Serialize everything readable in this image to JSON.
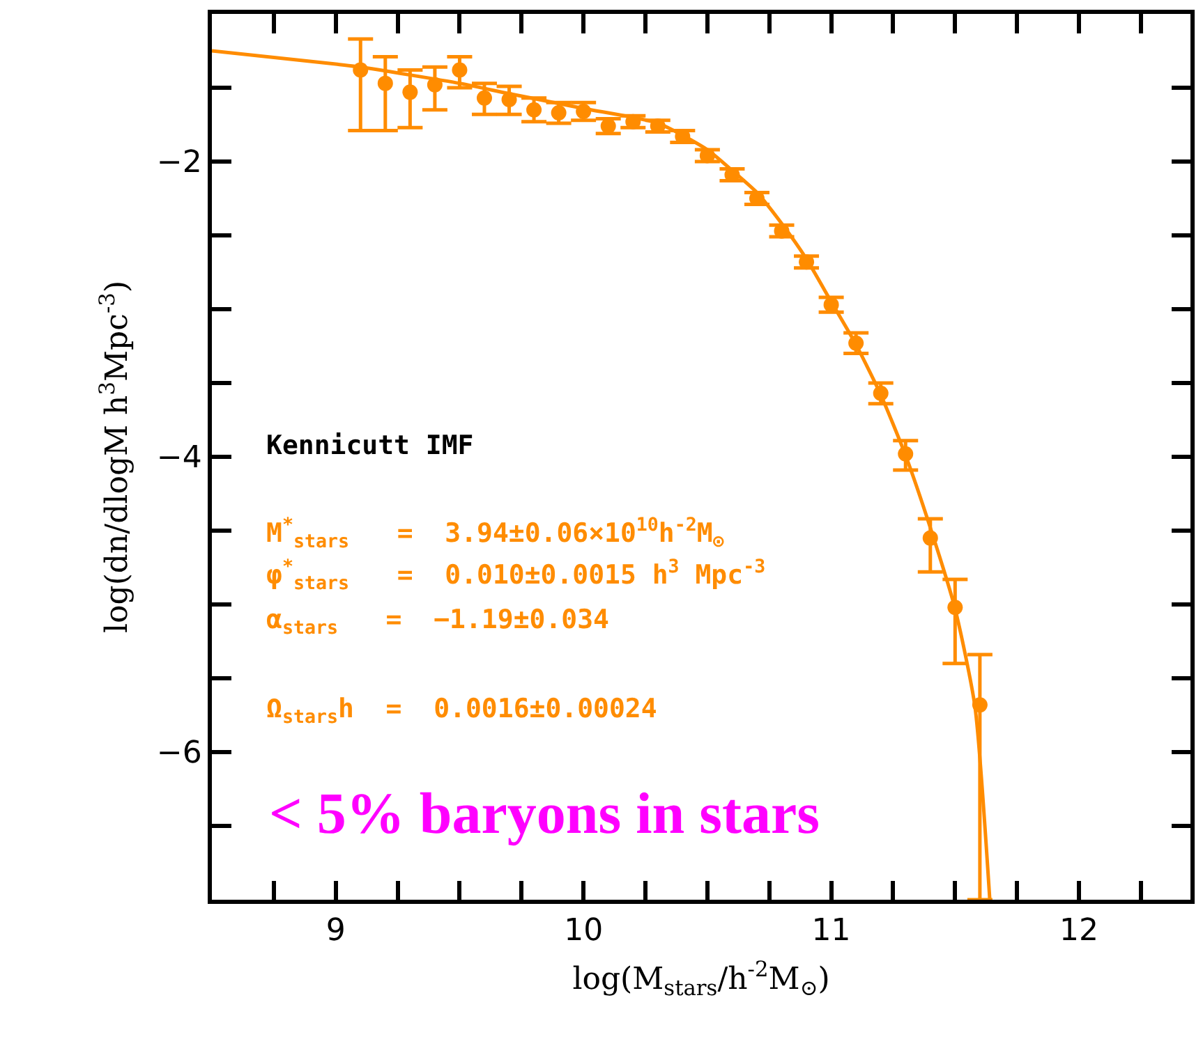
{
  "chart_data": {
    "type": "scatter",
    "xlabel": "log(M$_{stars}$/h$^{-2}$M$_{⊙}$)",
    "ylabel": "log(dn/dlogM h$^{3}$Mpc$^{-3}$)",
    "xlim": [
      8.5,
      12.45
    ],
    "ylim": [
      -7,
      -1
    ],
    "xticks": [
      {
        "value": 8.75,
        "label": null
      },
      9,
      {
        "value": 9.25,
        "label": null
      },
      {
        "value": 9.5,
        "label": null
      },
      {
        "value": 9.75,
        "label": null
      },
      10,
      {
        "value": 10.25,
        "label": null
      },
      {
        "value": 10.5,
        "label": null
      },
      {
        "value": 10.75,
        "label": null
      },
      11,
      {
        "value": 11.25,
        "label": null
      },
      {
        "value": 11.5,
        "label": null
      },
      {
        "value": 11.75,
        "label": null
      },
      12,
      {
        "value": 12.25,
        "label": null
      }
    ],
    "yticks": [
      {
        "value": -1.5,
        "label": null
      },
      -2,
      {
        "value": -2.5,
        "label": null
      },
      {
        "value": -3,
        "label": null
      },
      {
        "value": -3.5,
        "label": null
      },
      -4,
      {
        "value": -4.5,
        "label": null
      },
      {
        "value": -5,
        "label": null
      },
      {
        "value": -5.5,
        "label": null
      },
      -6,
      {
        "value": -6.5,
        "label": null
      }
    ],
    "series": [
      {
        "color": "#ff8c00",
        "marker": "circle",
        "x": [
          9.1,
          9.2,
          9.3,
          9.4,
          9.5,
          9.6,
          9.7,
          9.8,
          9.9,
          10.0,
          10.1,
          10.2,
          10.3,
          10.4,
          10.5,
          10.6,
          10.7,
          10.8,
          10.9,
          11.0,
          11.1,
          11.2,
          11.3,
          11.4,
          11.5,
          11.6
        ],
        "values": [
          -1.38,
          -1.47,
          -1.53,
          -1.48,
          -1.38,
          -1.57,
          -1.58,
          -1.65,
          -1.67,
          -1.66,
          -1.76,
          -1.73,
          -1.76,
          -1.83,
          -1.96,
          -2.09,
          -2.25,
          -2.47,
          -2.68,
          -2.97,
          -3.23,
          -3.57,
          -3.98,
          -4.55,
          -5.02,
          -5.68
        ],
        "errors": [
          [
            -1.79,
            -1.17
          ],
          [
            -1.79,
            -1.29
          ],
          [
            -1.77,
            -1.38
          ],
          [
            -1.65,
            -1.36
          ],
          [
            -1.5,
            -1.29
          ],
          [
            -1.68,
            -1.47
          ],
          [
            -1.68,
            -1.49
          ],
          0.08,
          0.07,
          0.06,
          0.05,
          0.04,
          0.04,
          0.04,
          0.04,
          0.04,
          0.04,
          0.04,
          0.04,
          0.05,
          0.07,
          0.07,
          [
            -4.09,
            -3.89
          ],
          [
            -4.78,
            -4.42
          ],
          [
            -5.4,
            -4.83
          ],
          [
            -7.0,
            -5.34
          ]
        ]
      },
      {
        "type": "line",
        "color": "#ff8c00",
        "marker": "none",
        "line_style": "solid",
        "x": [
          8.5,
          9.0,
          9.1,
          9.5,
          9.7,
          10.0,
          10.3,
          10.5,
          10.6,
          10.7,
          10.8,
          10.9,
          11.0,
          11.1,
          11.2,
          11.3,
          11.4,
          11.5,
          11.58,
          11.64
        ],
        "values": [
          -1.25,
          -1.34,
          -1.36,
          -1.47,
          -1.54,
          -1.64,
          -1.74,
          -1.92,
          -2.06,
          -2.21,
          -2.42,
          -2.66,
          -2.95,
          -3.24,
          -3.58,
          -3.99,
          -4.48,
          -5.03,
          -5.69,
          -7.0
        ]
      }
    ],
    "annotations": [
      "Kennicutt IMF",
      "M$^{*}$$_{stars}$   =  3.94±0.06×10$^{10}$h$^{-2}$M$_{⊙}$",
      "φ$^{*}$$_{stars}$   =  0.010±0.0015 h$^{3}$ Mpc$^{-3}$",
      "α$_{stars}$   =  −1.19±0.034",
      "Ω$_{stars}$h  =  0.0016±0.00024",
      "< 5% baryons in stars"
    ]
  }
}
